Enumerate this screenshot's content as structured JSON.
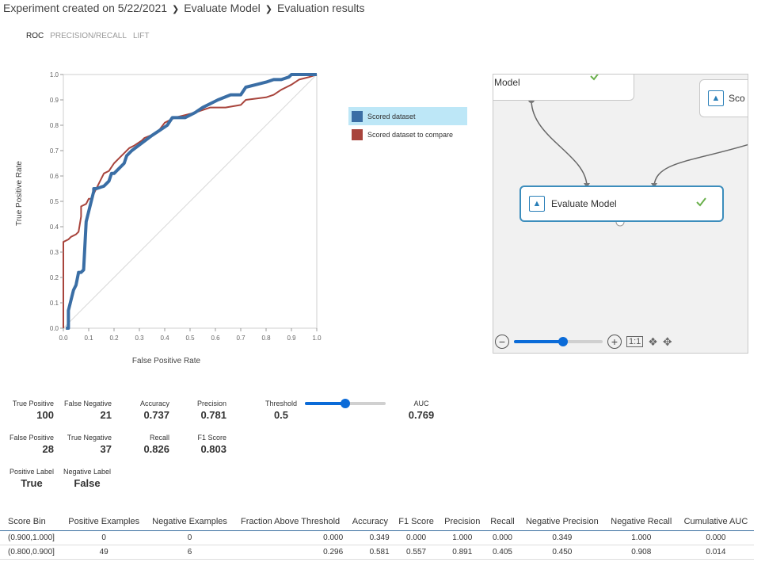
{
  "breadcrumb": [
    "Experiment created on 5/22/2021",
    "Evaluate Model",
    "Evaluation results"
  ],
  "tabs": [
    {
      "label": "ROC",
      "active": true
    },
    {
      "label": "PRECISION/RECALL",
      "active": false
    },
    {
      "label": "LIFT",
      "active": false
    }
  ],
  "chart_data": {
    "type": "line",
    "xlabel": "False Positive Rate",
    "ylabel": "True Positive Rate",
    "xlim": [
      0,
      1
    ],
    "ylim": [
      0,
      1
    ],
    "xticks": [
      "0.0",
      "0.1",
      "0.2",
      "0.3",
      "0.4",
      "0.5",
      "0.6",
      "0.7",
      "0.8",
      "0.9",
      "1.0"
    ],
    "yticks": [
      "0.0",
      "0.1",
      "0.2",
      "0.3",
      "0.4",
      "0.5",
      "0.6",
      "0.7",
      "0.8",
      "0.9",
      "1.0"
    ],
    "legend_position": "right",
    "diagonal": true,
    "series": [
      {
        "name": "Scored dataset",
        "color": "#3a6ea5",
        "x": [
          0.01,
          0.02,
          0.02,
          0.03,
          0.04,
          0.05,
          0.06,
          0.07,
          0.08,
          0.09,
          0.09,
          0.12,
          0.12,
          0.13,
          0.16,
          0.18,
          0.19,
          0.2,
          0.24,
          0.25,
          0.27,
          0.31,
          0.35,
          0.38,
          0.41,
          0.43,
          0.48,
          0.52,
          0.55,
          0.61,
          0.66,
          0.7,
          0.72,
          0.76,
          0.8,
          0.83,
          0.86,
          0.89,
          0.9,
          0.97,
          1.0
        ],
        "y": [
          0.0,
          0.0,
          0.07,
          0.11,
          0.15,
          0.17,
          0.22,
          0.22,
          0.23,
          0.42,
          0.42,
          0.54,
          0.55,
          0.55,
          0.56,
          0.58,
          0.61,
          0.61,
          0.65,
          0.68,
          0.7,
          0.73,
          0.76,
          0.78,
          0.8,
          0.83,
          0.83,
          0.85,
          0.87,
          0.9,
          0.92,
          0.92,
          0.95,
          0.96,
          0.97,
          0.98,
          0.98,
          0.99,
          1.0,
          1.0,
          1.0
        ]
      },
      {
        "name": "Scored dataset to compare",
        "color": "#a8443c",
        "x": [
          0.0,
          0.0,
          0.02,
          0.03,
          0.05,
          0.06,
          0.07,
          0.07,
          0.09,
          0.1,
          0.11,
          0.15,
          0.16,
          0.18,
          0.2,
          0.22,
          0.26,
          0.28,
          0.31,
          0.32,
          0.37,
          0.4,
          0.44,
          0.48,
          0.52,
          0.58,
          0.64,
          0.7,
          0.72,
          0.8,
          0.83,
          0.86,
          0.88,
          0.9,
          0.93,
          0.97,
          1.0
        ],
        "y": [
          0.0,
          0.34,
          0.35,
          0.36,
          0.37,
          0.38,
          0.44,
          0.48,
          0.49,
          0.51,
          0.51,
          0.59,
          0.61,
          0.62,
          0.65,
          0.67,
          0.71,
          0.72,
          0.74,
          0.75,
          0.77,
          0.81,
          0.83,
          0.84,
          0.85,
          0.87,
          0.87,
          0.88,
          0.9,
          0.91,
          0.92,
          0.94,
          0.95,
          0.96,
          0.98,
          0.99,
          1.0
        ]
      }
    ]
  },
  "graph": {
    "nodes": {
      "model": {
        "label": "Model"
      },
      "score": {
        "label": "Sco"
      },
      "evaluate": {
        "label": "Evaluate Model"
      }
    },
    "zoom": {
      "level": 0.55,
      "one_to_one_label": "1:1"
    }
  },
  "metrics": {
    "true_positive": {
      "label": "True Positive",
      "value": "100"
    },
    "false_negative": {
      "label": "False Negative",
      "value": "21"
    },
    "accuracy": {
      "label": "Accuracy",
      "value": "0.737"
    },
    "precision": {
      "label": "Precision",
      "value": "0.781"
    },
    "threshold": {
      "label": "Threshold",
      "value": "0.5",
      "slider": 0.5
    },
    "auc": {
      "label": "AUC",
      "value": "0.769"
    },
    "false_positive": {
      "label": "False Positive",
      "value": "28"
    },
    "true_negative": {
      "label": "True Negative",
      "value": "37"
    },
    "recall": {
      "label": "Recall",
      "value": "0.826"
    },
    "f1": {
      "label": "F1 Score",
      "value": "0.803"
    },
    "positive_label": {
      "label": "Positive Label",
      "value": "True"
    },
    "negative_label": {
      "label": "Negative Label",
      "value": "False"
    }
  },
  "table": {
    "headers": [
      "Score Bin",
      "Positive Examples",
      "Negative Examples",
      "Fraction Above Threshold",
      "Accuracy",
      "F1 Score",
      "Precision",
      "Recall",
      "Negative Precision",
      "Negative Recall",
      "Cumulative AUC"
    ],
    "rows": [
      [
        "(0.900,1.000]",
        "0",
        "0",
        "0.000",
        "0.349",
        "0.000",
        "1.000",
        "0.000",
        "0.349",
        "1.000",
        "0.000"
      ],
      [
        "(0.800,0.900]",
        "49",
        "6",
        "0.296",
        "0.581",
        "0.557",
        "0.891",
        "0.405",
        "0.450",
        "0.908",
        "0.014"
      ]
    ]
  }
}
